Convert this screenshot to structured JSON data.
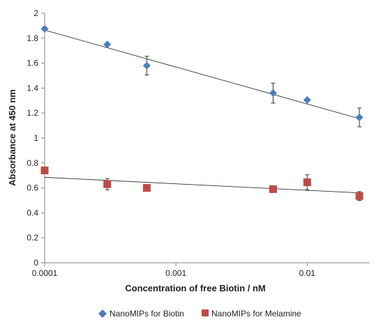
{
  "chart_data": {
    "type": "scatter",
    "title": "",
    "xlabel": "Concentration of free Biotin / nM",
    "ylabel": "Absorbance at 450 nm",
    "x_scale": "log",
    "xlim": [
      0.0001,
      0.03
    ],
    "ylim": [
      0,
      2
    ],
    "x_ticks": [
      0.0001,
      0.001,
      0.01
    ],
    "x_tick_labels": [
      "0.0001",
      "0.001",
      "0.01"
    ],
    "y_ticks": [
      0,
      0.2,
      0.4,
      0.6,
      0.8,
      1,
      1.2,
      1.4,
      1.6,
      1.8,
      2
    ],
    "y_tick_labels": [
      "0",
      "0.2",
      "0.4",
      "0.6",
      "0.8",
      "1",
      "1.2",
      "1.4",
      "1.6",
      "1.8",
      "2"
    ],
    "grid": false,
    "legend_position": "bottom",
    "series": [
      {
        "name": "NanoMIPs for Biotin",
        "marker": "diamond",
        "color": "#4a7ebb",
        "x": [
          0.0001,
          0.0003,
          0.0006,
          0.0055,
          0.01,
          0.025
        ],
        "y": [
          1.875,
          1.75,
          1.58,
          1.36,
          1.305,
          1.165
        ],
        "error": [
          0,
          0,
          0.075,
          0.08,
          0,
          0.075
        ],
        "trendline": {
          "x0": 0.0001,
          "y0": 1.865,
          "x1": 0.025,
          "y1": 1.155
        }
      },
      {
        "name": "NanoMIPs for Melamine",
        "marker": "square",
        "color": "#be4b48",
        "x": [
          0.0001,
          0.0003,
          0.0006,
          0.0055,
          0.01,
          0.025
        ],
        "y": [
          0.74,
          0.63,
          0.6,
          0.59,
          0.645,
          0.535
        ],
        "error": [
          0,
          0.045,
          0,
          0,
          0.06,
          0.035
        ],
        "trendline": {
          "x0": 0.0001,
          "y0": 0.685,
          "x1": 0.025,
          "y1": 0.56
        }
      }
    ]
  }
}
